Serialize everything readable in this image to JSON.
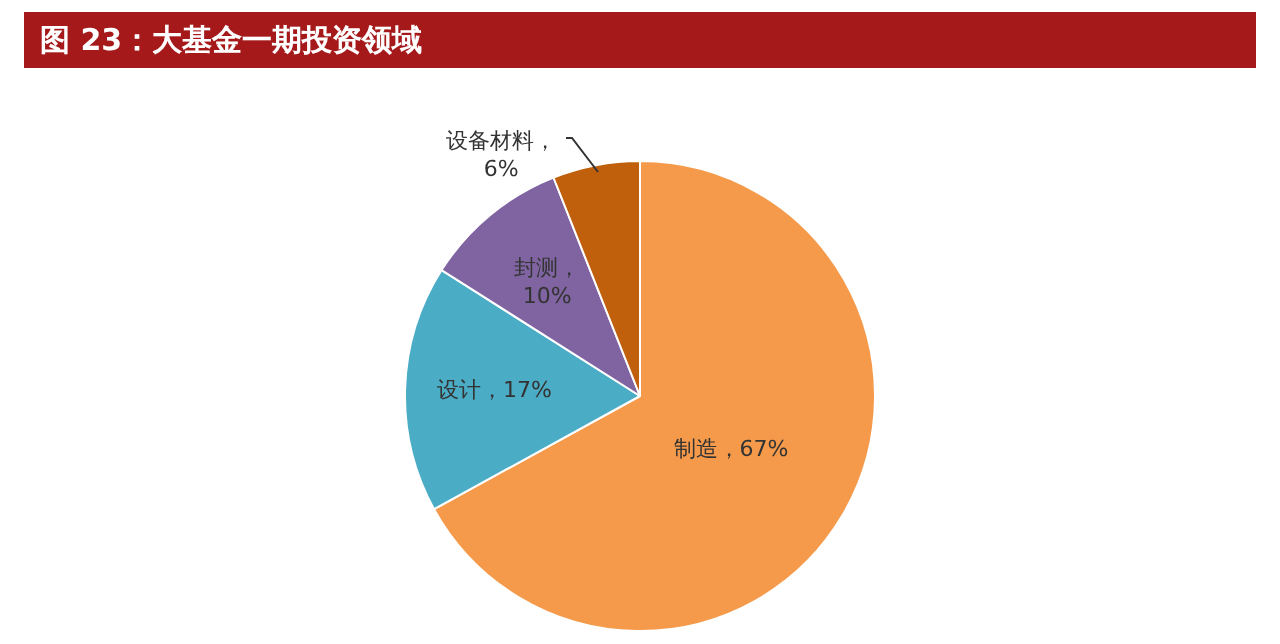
{
  "chart_data": {
    "type": "pie",
    "title": "图 23：大基金一期投资领域",
    "categories": [
      "制造",
      "设计",
      "封测",
      "设备材料"
    ],
    "values": [
      67,
      17,
      10,
      6
    ],
    "colors": [
      "#f59a4b",
      "#4bacc6",
      "#8064a2",
      "#c0600c"
    ],
    "value_labels": [
      "，67%",
      "，17%",
      "，\n10%",
      "，\n6%"
    ],
    "legend": false
  }
}
